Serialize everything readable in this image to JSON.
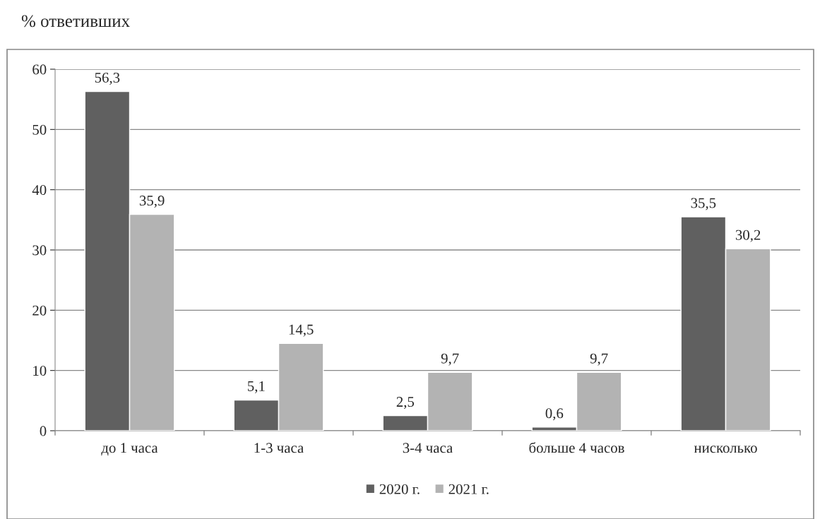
{
  "chart_data": {
    "type": "bar",
    "title": "% ответивших",
    "categories": [
      "до 1 часа",
      "1-3 часа",
      "3-4 часа",
      "больше 4 часов",
      "нисколько"
    ],
    "series": [
      {
        "name": "2020 г.",
        "color": "#606060",
        "values": [
          56.3,
          5.1,
          2.5,
          0.6,
          35.5
        ],
        "value_labels": [
          "56,3",
          "5,1",
          "2,5",
          "0,6",
          "35,5"
        ]
      },
      {
        "name": "2021 г.",
        "color": "#b3b3b3",
        "values": [
          35.9,
          14.5,
          9.7,
          9.7,
          30.2
        ],
        "value_labels": [
          "35,9",
          "14,5",
          "9,7",
          "9,7",
          "30,2"
        ]
      }
    ],
    "ylim": [
      0,
      60
    ],
    "yticks": [
      0,
      10,
      20,
      30,
      40,
      50,
      60
    ],
    "grid": "y",
    "legend": "bottom"
  }
}
